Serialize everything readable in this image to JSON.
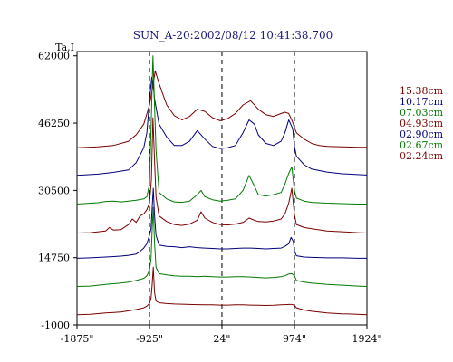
{
  "chart_data": {
    "type": "line",
    "title": "SUN_A-20:2002/08/12 10:41:38.700",
    "ylabel": "Ta,I",
    "xlabel": "",
    "xlim": [
      -1875,
      1924
    ],
    "ylim": [
      -1000,
      63000
    ],
    "x_ticks": [
      "-1875\"",
      "-925\"",
      "24\"",
      "974\"",
      "1924\""
    ],
    "x_tick_values": [
      -1875,
      -925,
      24,
      974,
      1924
    ],
    "y_ticks": [
      "62000",
      "46250",
      "30500",
      "14750",
      "-1000"
    ],
    "y_tick_values": [
      62000,
      46250,
      30500,
      14750,
      -1000
    ],
    "reference_lines_x": [
      -925,
      24,
      974
    ],
    "grid": false,
    "legend_position": "right",
    "series": [
      {
        "name": "15.38cm",
        "color": "#7a0000",
        "baseline": 40500,
        "x": [
          -1875,
          -1600,
          -1400,
          -1200,
          -1100,
          -1000,
          -925,
          -880,
          -850,
          -800,
          -700,
          -600,
          -500,
          -400,
          -300,
          -200,
          -100,
          0,
          100,
          200,
          300,
          400,
          500,
          600,
          700,
          800,
          850,
          900,
          950,
          974,
          1000,
          1100,
          1200,
          1300,
          1400,
          1600,
          1800,
          1924
        ],
        "values": [
          40500,
          40700,
          41000,
          42000,
          43500,
          46000,
          50500,
          55000,
          58500,
          55500,
          50500,
          48000,
          47000,
          47800,
          49500,
          49000,
          47500,
          46800,
          47300,
          48500,
          50500,
          51500,
          49500,
          48200,
          47800,
          48500,
          48800,
          48500,
          46500,
          45200,
          44000,
          42500,
          41500,
          41000,
          40800,
          40700,
          40600,
          40600
        ]
      },
      {
        "name": "10.17cm",
        "color": "#00007a",
        "baseline": 34000,
        "x": [
          -1875,
          -1600,
          -1400,
          -1200,
          -1100,
          -1000,
          -960,
          -925,
          -895,
          -880,
          -860,
          -800,
          -700,
          -600,
          -500,
          -400,
          -300,
          -200,
          -100,
          0,
          100,
          200,
          250,
          300,
          380,
          450,
          500,
          600,
          700,
          800,
          850,
          900,
          950,
          974,
          1000,
          1100,
          1200,
          1400,
          1600,
          1800,
          1924
        ],
        "values": [
          34000,
          34300,
          34700,
          35300,
          37000,
          40500,
          44000,
          51500,
          57000,
          56000,
          52000,
          46000,
          43000,
          41000,
          41000,
          42000,
          44500,
          42500,
          40800,
          40300,
          40500,
          41000,
          42500,
          44000,
          47000,
          46000,
          43500,
          41500,
          41000,
          42000,
          44000,
          47000,
          45000,
          40800,
          38500,
          36500,
          35500,
          34800,
          34400,
          34200,
          34100
        ]
      },
      {
        "name": "07.03cm",
        "color": "#007a00",
        "baseline": 27000,
        "x": [
          -1875,
          -1700,
          -1600,
          -1500,
          -1400,
          -1300,
          -1200,
          -1100,
          -1000,
          -960,
          -925,
          -900,
          -880,
          -860,
          -840,
          -800,
          -700,
          -600,
          -500,
          -400,
          -300,
          -250,
          -200,
          -100,
          0,
          100,
          200,
          300,
          380,
          450,
          500,
          600,
          700,
          800,
          850,
          900,
          940,
          974,
          1000,
          1100,
          1200,
          1400,
          1600,
          1800,
          1924
        ],
        "values": [
          27300,
          27500,
          27600,
          27900,
          28000,
          27800,
          28000,
          28200,
          28500,
          29000,
          32000,
          48000,
          62000,
          51000,
          40000,
          30000,
          28500,
          27800,
          27700,
          28000,
          29500,
          30500,
          29000,
          28300,
          28000,
          28200,
          28500,
          30500,
          34000,
          31500,
          29500,
          29200,
          29500,
          30000,
          32000,
          34500,
          36000,
          30500,
          28700,
          28000,
          27700,
          27500,
          27400,
          27300,
          27300
        ]
      },
      {
        "name": "04.93cm",
        "color": "#7a0000",
        "baseline": 20500,
        "x": [
          -1875,
          -1700,
          -1500,
          -1450,
          -1400,
          -1300,
          -1200,
          -1150,
          -1100,
          -1050,
          -1000,
          -960,
          -925,
          -900,
          -880,
          -860,
          -840,
          -800,
          -700,
          -600,
          -500,
          -400,
          -300,
          -250,
          -200,
          -100,
          0,
          100,
          200,
          300,
          380,
          450,
          500,
          600,
          700,
          800,
          850,
          900,
          940,
          974,
          1000,
          1100,
          1200,
          1400,
          1600,
          1800,
          1924
        ],
        "values": [
          20500,
          20600,
          21000,
          21800,
          21200,
          21300,
          22500,
          23800,
          23000,
          24500,
          25000,
          26000,
          27500,
          33000,
          47500,
          38000,
          29000,
          24500,
          23200,
          22500,
          22300,
          22600,
          23500,
          25500,
          24000,
          23000,
          22500,
          22400,
          22600,
          23000,
          24000,
          23500,
          23200,
          23100,
          23300,
          23800,
          25000,
          27500,
          31000,
          24800,
          22500,
          21800,
          21500,
          21000,
          20800,
          20600,
          20500
        ]
      },
      {
        "name": "02.90cm",
        "color": "#00007a",
        "baseline": 14600,
        "x": [
          -1875,
          -1700,
          -1500,
          -1300,
          -1200,
          -1100,
          -1050,
          -1000,
          -960,
          -925,
          -905,
          -890,
          -875,
          -860,
          -840,
          -800,
          -700,
          -600,
          -500,
          -400,
          -300,
          -200,
          -100,
          0,
          100,
          200,
          300,
          400,
          500,
          600,
          700,
          800,
          850,
          900,
          930,
          960,
          974,
          1000,
          1100,
          1200,
          1400,
          1600,
          1800,
          1924
        ],
        "values": [
          14600,
          14700,
          14900,
          15100,
          15300,
          15600,
          16200,
          17000,
          18000,
          20000,
          21500,
          26500,
          31000,
          25000,
          20000,
          17700,
          17400,
          17300,
          17100,
          17300,
          17100,
          17000,
          16900,
          16800,
          16800,
          16900,
          17000,
          17000,
          16900,
          16800,
          16900,
          17000,
          17400,
          18000,
          19500,
          18500,
          16300,
          15200,
          14900,
          14800,
          14700,
          14700,
          14600,
          14600
        ]
      },
      {
        "name": "02.67cm",
        "color": "#007a00",
        "baseline": 8000,
        "x": [
          -1875,
          -1700,
          -1500,
          -1300,
          -1200,
          -1100,
          -1000,
          -960,
          -925,
          -905,
          -890,
          -875,
          -860,
          -840,
          -800,
          -700,
          -600,
          -500,
          -400,
          -300,
          -200,
          -100,
          0,
          100,
          200,
          300,
          400,
          500,
          600,
          700,
          800,
          850,
          900,
          940,
          974,
          1000,
          1100,
          1200,
          1400,
          1600,
          1800,
          1924
        ],
        "values": [
          8000,
          8100,
          8500,
          8800,
          9000,
          9400,
          9900,
          10500,
          11800,
          14500,
          21500,
          26500,
          18500,
          12500,
          11000,
          10700,
          10500,
          10400,
          10400,
          10300,
          10400,
          10300,
          10200,
          10200,
          10300,
          10300,
          10200,
          10100,
          10000,
          10100,
          10300,
          10500,
          10900,
          11000,
          10500,
          9400,
          9000,
          8800,
          8500,
          8300,
          8100,
          8000
        ]
      },
      {
        "name": "02.24cm",
        "color": "#7a0000",
        "baseline": 1500,
        "x": [
          -1875,
          -1700,
          -1500,
          -1300,
          -1200,
          -1100,
          -1000,
          -960,
          -925,
          -905,
          -890,
          -875,
          -860,
          -840,
          -800,
          -700,
          -600,
          -500,
          -400,
          -300,
          -200,
          -100,
          0,
          100,
          200,
          300,
          400,
          500,
          600,
          700,
          800,
          850,
          900,
          940,
          974,
          1000,
          1100,
          1200,
          1400,
          1600,
          1800,
          1924
        ],
        "values": [
          1400,
          1500,
          1800,
          2000,
          2300,
          2600,
          3000,
          3400,
          4000,
          5200,
          8500,
          12500,
          6800,
          4600,
          4200,
          4000,
          3900,
          3850,
          3800,
          3750,
          3700,
          3700,
          3650,
          3650,
          3700,
          3700,
          3650,
          3600,
          3550,
          3600,
          3700,
          3750,
          3800,
          3800,
          3600,
          3000,
          2500,
          2200,
          1800,
          1600,
          1500,
          1400
        ]
      }
    ]
  }
}
